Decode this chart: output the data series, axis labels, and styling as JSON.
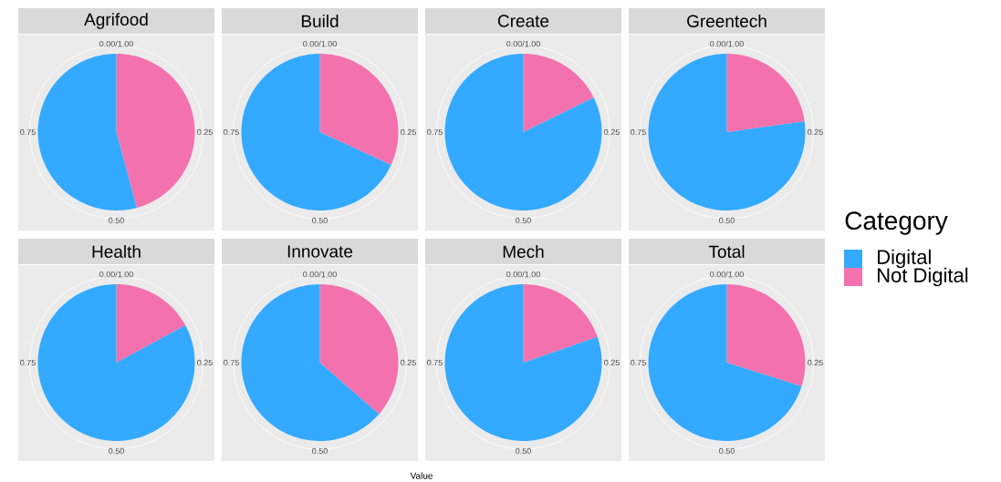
{
  "chart_data": [
    {
      "type": "pie",
      "title": "Agrifood",
      "values": [
        54.2,
        45.8
      ],
      "colors": [
        "#33aaff",
        "#f372ae"
      ],
      "annotations": [
        "0.00/1.00",
        "0.25",
        "0.50",
        "0.75"
      ]
    },
    {
      "type": "pie",
      "title": "Build",
      "values": [
        68.1,
        31.9
      ],
      "colors": [
        "#33aaff",
        "#f372ae"
      ],
      "annotations": [
        "0.00/1.00",
        "0.25",
        "0.50",
        "0.75"
      ]
    },
    {
      "type": "pie",
      "title": "Create",
      "values": [
        82.3,
        17.7
      ],
      "colors": [
        "#33aaff",
        "#f372ae"
      ],
      "annotations": [
        "0.00/1.00",
        "0.25",
        "0.50",
        "0.75"
      ]
    },
    {
      "type": "pie",
      "title": "Greentech",
      "values": [
        77.2,
        22.8
      ],
      "colors": [
        "#33aaff",
        "#f372ae"
      ],
      "annotations": [
        "0.00/1.00",
        "0.25",
        "0.50",
        "0.75"
      ]
    },
    {
      "type": "pie",
      "title": "Health",
      "values": [
        82.9,
        17.1
      ],
      "colors": [
        "#33aaff",
        "#f372ae"
      ],
      "annotations": [
        "0.00/1.00",
        "0.25",
        "0.50",
        "0.75"
      ]
    },
    {
      "type": "pie",
      "title": "Innovate",
      "xlabel": "Value",
      "values": [
        63.6,
        36.4
      ],
      "colors": [
        "#33aaff",
        "#f372ae"
      ],
      "annotations": [
        "0.00/1.00",
        "0.25",
        "0.50",
        "0.75"
      ]
    },
    {
      "type": "pie",
      "title": "Mech",
      "values": [
        80.3,
        19.7
      ],
      "colors": [
        "#33aaff",
        "#f372ae"
      ],
      "annotations": [
        "0.00/1.00",
        "0.25",
        "0.50",
        "0.75"
      ]
    },
    {
      "type": "pie",
      "title": "Total",
      "legend_title": "Category",
      "legend": "right",
      "categories": [
        "Digital",
        "Not Digital"
      ],
      "values": [
        70.1,
        29.9
      ],
      "colors": [
        "#33aaff",
        "#f372ae"
      ],
      "annotations": [
        "0.00/1.00",
        "0.25",
        "0.50",
        "0.75"
      ]
    }
  ]
}
